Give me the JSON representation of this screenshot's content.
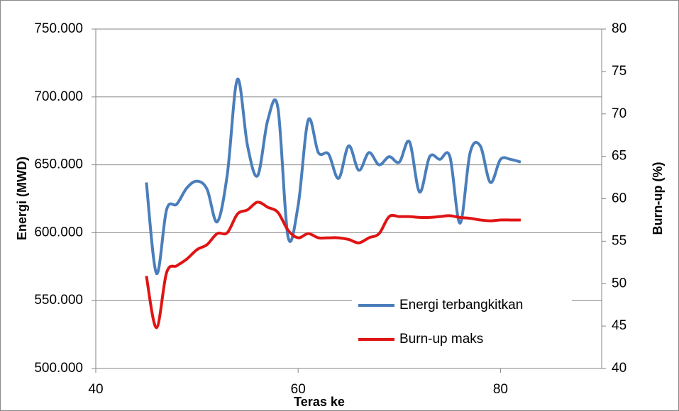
{
  "chart_data": {
    "type": "line",
    "x": [
      45,
      46,
      47,
      48,
      49,
      50,
      51,
      52,
      53,
      54,
      55,
      56,
      57,
      58,
      59,
      60,
      61,
      62,
      63,
      64,
      65,
      66,
      67,
      68,
      69,
      70,
      71,
      72,
      73,
      74,
      75,
      76,
      77,
      78,
      79,
      80,
      81,
      82
    ],
    "series": [
      {
        "name": "Energi terbangkitkan",
        "color": "#4a7ebb",
        "axis": "y",
        "values": [
          637000,
          570000,
          617000,
          621000,
          633000,
          638000,
          632000,
          608000,
          643000,
          713000,
          664000,
          642000,
          683000,
          692000,
          597000,
          620000,
          683000,
          659000,
          658000,
          640000,
          664000,
          646000,
          659000,
          650000,
          656000,
          652000,
          667000,
          630000,
          656000,
          654000,
          656000,
          607000,
          659000,
          664000,
          637000,
          654000,
          654000,
          652000
        ]
      },
      {
        "name": "Burn-up maks",
        "color": "#e01414",
        "axis": "y2",
        "values": [
          50.9,
          44.8,
          51.3,
          52.1,
          52.9,
          54.0,
          54.6,
          55.9,
          56.0,
          58.2,
          58.7,
          59.6,
          59.0,
          58.4,
          56.3,
          55.4,
          55.9,
          55.4,
          55.4,
          55.4,
          55.2,
          54.8,
          55.4,
          55.9,
          57.9,
          57.9,
          57.9,
          57.8,
          57.8,
          57.9,
          58.0,
          57.8,
          57.7,
          57.5,
          57.4,
          57.5,
          57.5,
          57.5
        ]
      }
    ],
    "x_label": "Teras ke",
    "y_label": "Energi (MWD)",
    "y2_label": "Burn-up (%)",
    "xlim": [
      40,
      90
    ],
    "xticks": [
      40,
      60,
      80
    ],
    "ylim": [
      500000,
      750000
    ],
    "yticks": [
      {
        "value": 500000,
        "label": "500.000"
      },
      {
        "value": 550000,
        "label": "550.000"
      },
      {
        "value": 600000,
        "label": "600.000"
      },
      {
        "value": 650000,
        "label": "650.000"
      },
      {
        "value": 700000,
        "label": "700.000"
      },
      {
        "value": 750000,
        "label": "750.000"
      }
    ],
    "y2lim": [
      40,
      80
    ],
    "y2ticks": [
      40,
      45,
      50,
      55,
      60,
      65,
      70,
      75,
      80
    ],
    "grid": true,
    "legend": "lower right"
  }
}
